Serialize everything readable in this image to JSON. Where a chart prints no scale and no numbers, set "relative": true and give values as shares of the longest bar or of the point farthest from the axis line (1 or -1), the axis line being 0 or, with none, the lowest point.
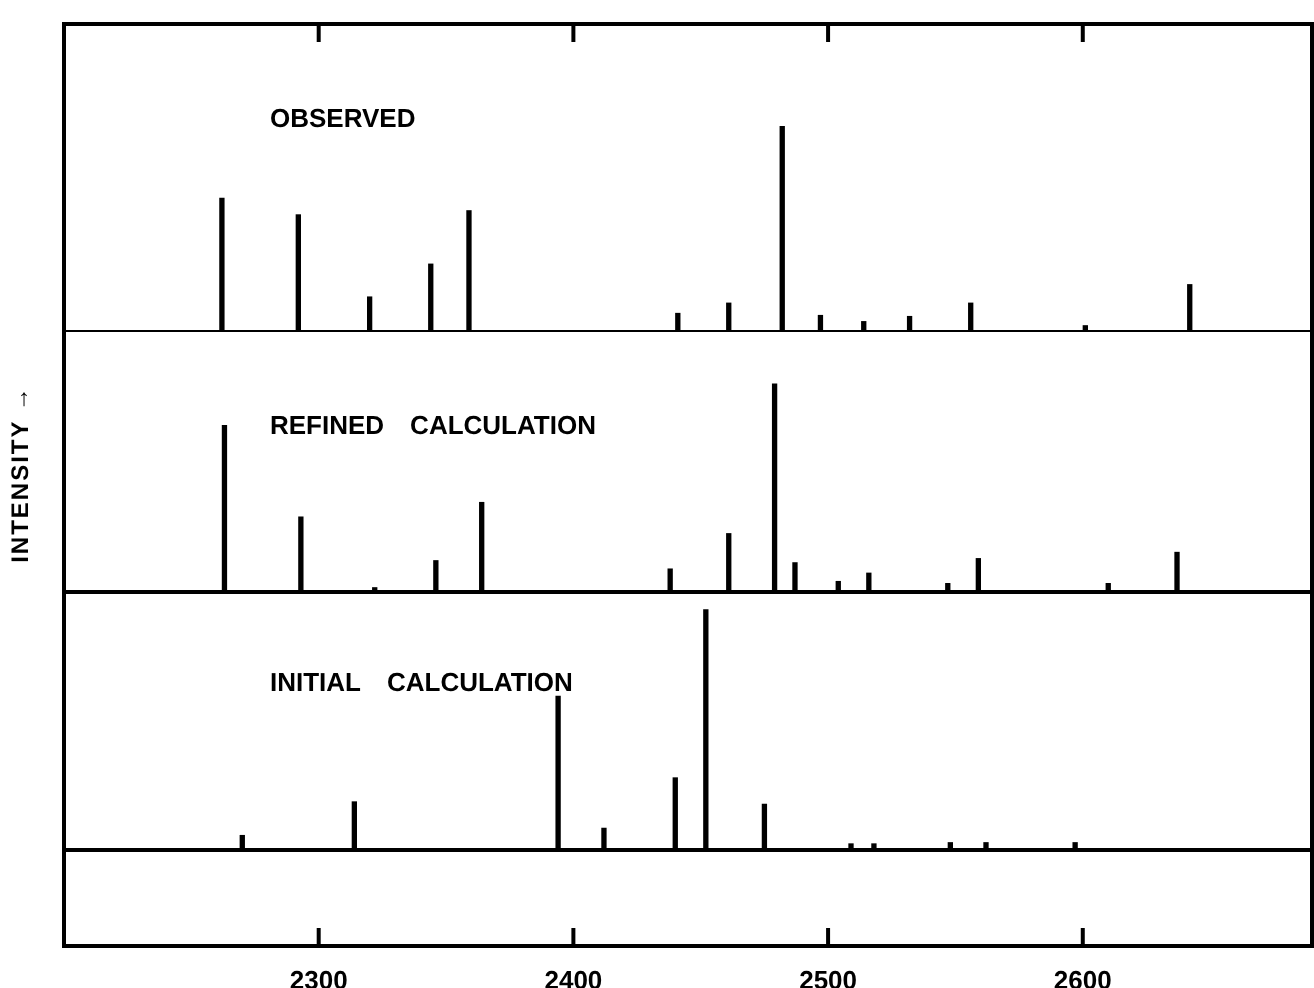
{
  "chart_data": [
    {
      "type": "bar",
      "relative": true,
      "color": "#000000",
      "xlim": [
        2200,
        2690
      ],
      "xticks": [
        2300,
        2400,
        2500,
        2600
      ],
      "tick_labels": false,
      "legend": false,
      "annotations": [
        "OBSERVED"
      ],
      "x": [
        2262,
        2292,
        2320,
        2344,
        2359,
        2441,
        2461,
        2482,
        2497,
        2514,
        2532,
        2556,
        2601,
        2642
      ],
      "values": [
        0.65,
        0.57,
        0.17,
        0.33,
        0.59,
        0.09,
        0.14,
        1,
        0.08,
        0.05,
        0.075,
        0.14,
        0.03,
        0.23
      ]
    },
    {
      "type": "bar",
      "relative": true,
      "color": "#000000",
      "xlim": [
        2200,
        2690
      ],
      "xticks": [
        2300,
        2400,
        2500,
        2600
      ],
      "tick_labels": false,
      "legend": false,
      "ylabel": "INTENSITY →",
      "annotations": [
        "REFINED  CALCULATION"
      ],
      "x": [
        2263,
        2293,
        2322,
        2346,
        2364,
        2438,
        2461,
        2479,
        2487,
        2504,
        2516,
        2547,
        2559,
        2610,
        2637
      ],
      "values": [
        0.8,
        0.36,
        0.02,
        0.15,
        0.43,
        0.11,
        0.28,
        1,
        0.14,
        0.05,
        0.09,
        0.04,
        0.16,
        0.04,
        0.19
      ]
    },
    {
      "type": "bar",
      "relative": true,
      "color": "#000000",
      "xlim": [
        2200,
        2690
      ],
      "xticks": [
        2300,
        2400,
        2500,
        2600
      ],
      "tick_labels": "x",
      "legend": false,
      "annotations": [
        "INITIAL  CALCULATION"
      ],
      "x": [
        2270,
        2314,
        2394,
        2412,
        2440,
        2452,
        2475,
        2509,
        2518,
        2548,
        2562,
        2597
      ],
      "values": [
        0.06,
        0.2,
        0.64,
        0.09,
        0.3,
        1,
        0.19,
        0.025,
        0.025,
        0.03,
        0.03,
        0.03
      ]
    }
  ]
}
